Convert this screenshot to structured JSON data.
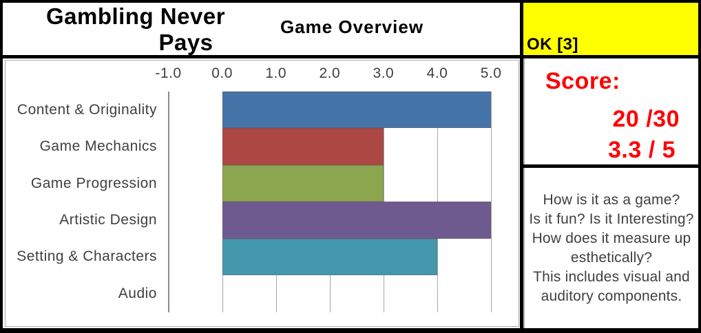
{
  "header": {
    "game_title_line1": "Gambling Never",
    "game_title_line2": "Pays",
    "chart_title": "Game Overview",
    "rating_label": "OK [3]",
    "rating_bg_color": "#FFFF00"
  },
  "score_panel": {
    "label": "Score:",
    "points": "20 /30",
    "average": "3.3 / 5",
    "text_color": "#FF0000"
  },
  "notes_panel": {
    "lines": [
      "How is it as a game?",
      "Is it fun? Is it Interesting?",
      "How does it measure up",
      "esthetically?",
      "This includes visual and",
      "auditory components."
    ]
  },
  "chart_data": {
    "type": "bar",
    "orientation": "horizontal",
    "title": "Game Overview",
    "xlim": [
      -1.0,
      5.0
    ],
    "x_ticks": [
      "-1.0",
      "0.0",
      "1.0",
      "2.0",
      "3.0",
      "4.0",
      "5.0"
    ],
    "grid": true,
    "gridline_color": "#A6A6A6",
    "axis_color": "#8C8C8C",
    "bars": [
      {
        "label": "Content & Originality",
        "value": 5.0,
        "color": "#4574A9"
      },
      {
        "label": "Game Mechanics",
        "value": 3.0,
        "color": "#AC4744"
      },
      {
        "label": "Game Progression",
        "value": 3.0,
        "color": "#8BA64E"
      },
      {
        "label": "Artistic Design",
        "value": 5.0,
        "color": "#6F5A90"
      },
      {
        "label": "Setting & Characters",
        "value": 4.0,
        "color": "#4498AD"
      },
      {
        "label": "Audio",
        "value": 0.0,
        "color": null
      }
    ]
  }
}
